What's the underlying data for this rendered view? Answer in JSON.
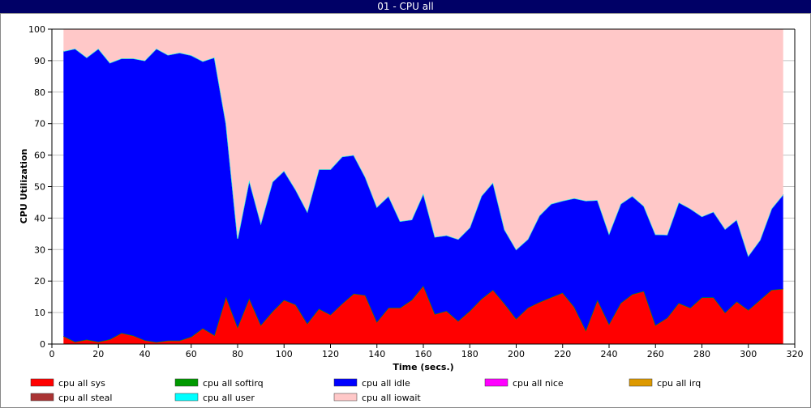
{
  "window": {
    "title": "01 - CPU all"
  },
  "chart_data": {
    "type": "area",
    "stacked": true,
    "title": "01 - CPU all",
    "xlabel": "Time (secs.)",
    "ylabel": "CPU Utilization",
    "xlim": [
      0,
      320
    ],
    "ylim": [
      0,
      100
    ],
    "xticks": [
      0,
      20,
      40,
      60,
      80,
      100,
      120,
      140,
      160,
      180,
      200,
      220,
      240,
      260,
      280,
      300,
      320
    ],
    "yticks": [
      0,
      10,
      20,
      30,
      40,
      50,
      60,
      70,
      80,
      90,
      100
    ],
    "grid": true,
    "legend_position": "bottom",
    "x": [
      5,
      10,
      15,
      20,
      25,
      30,
      35,
      40,
      45,
      50,
      55,
      60,
      65,
      70,
      75,
      80,
      85,
      90,
      95,
      100,
      105,
      110,
      115,
      120,
      125,
      130,
      135,
      140,
      145,
      150,
      155,
      160,
      165,
      170,
      175,
      180,
      185,
      190,
      195,
      200,
      205,
      210,
      215,
      220,
      225,
      230,
      235,
      240,
      245,
      250,
      255,
      260,
      265,
      270,
      275,
      280,
      285,
      290,
      295,
      300,
      305,
      310,
      315
    ],
    "series": [
      {
        "name": "cpu all sys",
        "color": "#ff0000",
        "values": [
          2.5,
          0.7,
          1.4,
          0.7,
          1.5,
          3.5,
          2.7,
          1.2,
          0.6,
          1.1,
          1.1,
          2.3,
          5,
          2.8,
          15,
          5.3,
          14.5,
          6,
          10.3,
          14,
          12.5,
          6.5,
          11.2,
          9.3,
          12.8,
          16,
          15.5,
          7,
          11.5,
          11.5,
          14,
          18.5,
          9.5,
          10.5,
          7.3,
          10.5,
          14.3,
          17.2,
          12.8,
          8,
          11.5,
          13.3,
          14.8,
          16.3,
          11.8,
          4.3,
          14,
          6.3,
          13,
          15.8,
          16.8,
          6,
          8.3,
          13,
          11.5,
          14.8,
          14.8,
          10,
          13.5,
          10.8,
          14,
          17.2,
          17.5
        ]
      },
      {
        "name": "cpu all softirq",
        "color": "#009900",
        "values": [
          0,
          0,
          0,
          0,
          0,
          0,
          0,
          0,
          0,
          0,
          0,
          0,
          0,
          0,
          0,
          0,
          0,
          0,
          0,
          0,
          0,
          0,
          0,
          0,
          0,
          0,
          0,
          0,
          0,
          0,
          0,
          0,
          0,
          0,
          0,
          0,
          0,
          0,
          0,
          0,
          0,
          0,
          0,
          0,
          0,
          0,
          0,
          0,
          0,
          0,
          0,
          0,
          0,
          0,
          0,
          0,
          0,
          0,
          0,
          0,
          0,
          0,
          0
        ]
      },
      {
        "name": "cpu all idle",
        "color": "#0000ff",
        "values": [
          90.5,
          93.1,
          89.6,
          93.1,
          87.8,
          87.2,
          88,
          88.8,
          93.2,
          90.7,
          91.4,
          89.4,
          84.8,
          88.2,
          55,
          28.2,
          37.5,
          32.3,
          41.2,
          41,
          36.5,
          35.5,
          44.3,
          46.2,
          46.7,
          44,
          37.5,
          36.5,
          35.5,
          27.5,
          25.5,
          29.3,
          24.5,
          24,
          26,
          26.5,
          32.7,
          34.1,
          23.5,
          22,
          21.8,
          27.5,
          29.7,
          29.2,
          34.5,
          41.2,
          31.7,
          28.7,
          31.5,
          31.2,
          27,
          28.8,
          26.4,
          32,
          31.5,
          25.7,
          27.2,
          26.5,
          26,
          17.2,
          19,
          25.8,
          30
        ]
      },
      {
        "name": "cpu all nice",
        "color": "#ff00ff",
        "values": [
          0,
          0,
          0,
          0,
          0,
          0,
          0,
          0,
          0,
          0,
          0,
          0,
          0,
          0,
          0,
          0,
          0,
          0,
          0,
          0,
          0,
          0,
          0,
          0,
          0,
          0,
          0,
          0,
          0,
          0,
          0,
          0,
          0,
          0,
          0,
          0,
          0,
          0,
          0,
          0,
          0,
          0,
          0,
          0,
          0,
          0,
          0,
          0,
          0,
          0,
          0,
          0,
          0,
          0,
          0,
          0,
          0,
          0,
          0,
          0,
          0,
          0,
          0
        ]
      },
      {
        "name": "cpu all irq",
        "color": "#dd9900",
        "values": [
          0,
          0,
          0,
          0,
          0,
          0,
          0,
          0,
          0,
          0,
          0,
          0,
          0,
          0,
          0,
          0,
          0,
          0,
          0,
          0,
          0,
          0,
          0,
          0,
          0,
          0,
          0,
          0,
          0,
          0,
          0,
          0,
          0,
          0,
          0,
          0,
          0,
          0,
          0,
          0,
          0,
          0,
          0,
          0,
          0,
          0,
          0,
          0,
          0,
          0,
          0,
          0,
          0,
          0,
          0,
          0,
          0,
          0,
          0,
          0,
          0,
          0,
          0
        ]
      },
      {
        "name": "cpu all steal",
        "color": "#aa3333",
        "values": [
          0,
          0,
          0,
          0,
          0,
          0,
          0,
          0,
          0,
          0,
          0,
          0,
          0,
          0,
          0,
          0,
          0,
          0,
          0,
          0,
          0,
          0,
          0,
          0,
          0,
          0,
          0,
          0,
          0,
          0,
          0,
          0,
          0,
          0,
          0,
          0,
          0,
          0,
          0,
          0,
          0,
          0,
          0,
          0,
          0,
          0,
          0,
          0,
          0,
          0,
          0,
          0,
          0,
          0,
          0,
          0,
          0,
          0,
          0,
          0,
          0,
          0,
          0
        ]
      },
      {
        "name": "cpu all user",
        "color": "#00ffff",
        "values": [
          0,
          0,
          0,
          0,
          0,
          0,
          0,
          0,
          0,
          0,
          0,
          0,
          0,
          0,
          0,
          0,
          0,
          0,
          0,
          0,
          0,
          0,
          0,
          0,
          0,
          0,
          0,
          0,
          0,
          0,
          0,
          0,
          0,
          0,
          0,
          0,
          0,
          0,
          0,
          0,
          0,
          0,
          0,
          0,
          0,
          0,
          0,
          0,
          0,
          0,
          0,
          0,
          0,
          0,
          0,
          0,
          0,
          0,
          0,
          0,
          0,
          0,
          0
        ]
      },
      {
        "name": "cpu all iowait",
        "color": "#ffc8c8",
        "values": [
          7,
          6.2,
          9,
          6.2,
          10.7,
          9.3,
          9.3,
          10,
          6.2,
          8.2,
          7.5,
          8.3,
          10.2,
          9,
          30,
          66.5,
          48,
          61.7,
          48.5,
          45,
          51,
          58,
          44.5,
          44.5,
          40.5,
          40,
          47,
          56.5,
          53,
          61,
          60.5,
          52.2,
          66,
          65.5,
          66.7,
          63,
          53,
          48.7,
          63.7,
          70,
          66.7,
          59.2,
          55.5,
          54.5,
          53.7,
          54.5,
          54.3,
          65,
          55.5,
          53,
          56.2,
          65.2,
          65.3,
          55,
          57,
          59.5,
          58,
          63.5,
          60.5,
          72,
          67,
          57,
          52.5
        ]
      }
    ]
  }
}
